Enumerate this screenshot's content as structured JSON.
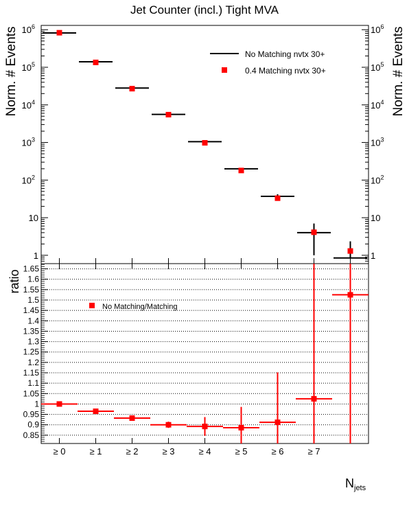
{
  "chart_data": [
    {
      "type": "scatter",
      "title": "Jet Counter (incl.) Tight MVA",
      "ylabel": "Norm. # Events",
      "ylabel_right": "Norm. # Events",
      "y_scale": "log",
      "ylim": [
        0.6,
        1300000
      ],
      "y_ticks": [
        {
          "value": 1000000,
          "base": "10",
          "exp": "6"
        },
        {
          "value": 100000,
          "base": "10",
          "exp": "5"
        },
        {
          "value": 10000,
          "base": "10",
          "exp": "4"
        },
        {
          "value": 1000,
          "base": "10",
          "exp": "3"
        },
        {
          "value": 100,
          "base": "10",
          "exp": "2"
        },
        {
          "value": 10,
          "base": "10",
          "exp": ""
        },
        {
          "value": 1,
          "base": "1",
          "exp": ""
        }
      ],
      "legend_position": "top-right",
      "series": [
        {
          "name": "No Matching nvtx 30+",
          "style": "line",
          "color": "#000000",
          "x": [
            0,
            1,
            2,
            3,
            4,
            5,
            6,
            7,
            8
          ],
          "values": [
            820000,
            140000,
            28000,
            5600,
            1050,
            200,
            37,
            4,
            0.85
          ],
          "err_low": [
            0,
            0,
            0,
            0,
            0,
            0,
            5,
            3,
            0
          ],
          "err_high": [
            0,
            0,
            0,
            0,
            0,
            0,
            5,
            3,
            1.5
          ]
        },
        {
          "name": "0.4 Matching nvtx 30+",
          "style": "marker",
          "color": "#ff0000",
          "x": [
            0,
            1,
            2,
            3,
            4,
            5,
            6,
            7,
            8
          ],
          "values": [
            830000,
            135000,
            27000,
            5500,
            980,
            180,
            33,
            4.1,
            1.3
          ]
        }
      ]
    },
    {
      "type": "scatter",
      "ylabel": "ratio",
      "xlabel_base": "N",
      "xlabel_sub": "jets",
      "ylim": [
        0.81,
        1.675
      ],
      "y_ticks": [
        "0.85",
        "0.9",
        "0.95",
        "1",
        "1.05",
        "1.1",
        "1.15",
        "1.2",
        "1.25",
        "1.3",
        "1.35",
        "1.4",
        "1.45",
        "1.5",
        "1.55",
        "1.6",
        "1.65"
      ],
      "grid": true,
      "categories": [
        "≥ 0",
        "≥ 1",
        "≥ 2",
        "≥ 3",
        "≥ 4",
        "≥ 5",
        "≥ 6",
        "≥ 7",
        ""
      ],
      "legend_position": "top-left",
      "series": [
        {
          "name": "No Matching/Matching",
          "color": "#ff0000",
          "x": [
            0,
            1,
            2,
            3,
            4,
            5,
            6,
            7,
            8
          ],
          "values": [
            1.0,
            0.965,
            0.932,
            0.9,
            0.892,
            0.886,
            0.912,
            1.025,
            1.525
          ],
          "err_low": [
            0,
            0,
            0,
            0.015,
            0.045,
            0.1,
            0.12,
            0.25,
            0.8
          ],
          "err_high": [
            0,
            0,
            0,
            0.015,
            0.045,
            0.1,
            0.24,
            0.7,
            0.3
          ]
        }
      ]
    }
  ]
}
